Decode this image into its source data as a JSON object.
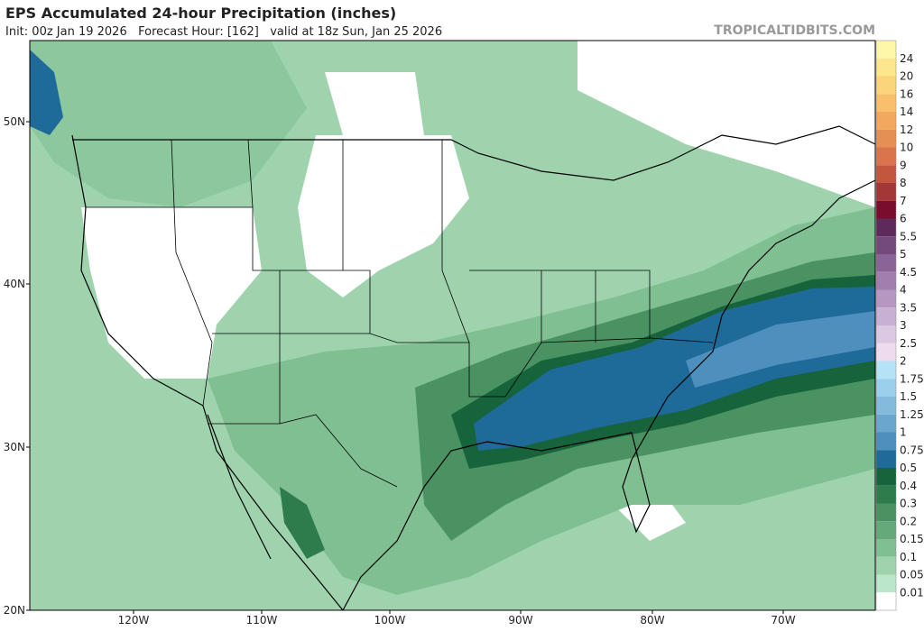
{
  "header": {
    "title": "EPS Accumulated 24-hour Precipitation (inches)",
    "subtitle": "Init: 00z Jan 19 2026   Forecast Hour: [162]   valid at 18z Sun, Jan 25 2026",
    "watermark": "TROPICALTIDBITS.COM"
  },
  "map": {
    "lat_labels": [
      "50N",
      "40N",
      "30N",
      "20N"
    ],
    "lon_labels": [
      "120W",
      "110W",
      "100W",
      "90W",
      "80W",
      "70W"
    ]
  },
  "colorbar": {
    "levels": [
      24,
      20,
      16,
      14,
      12,
      10,
      9,
      8,
      7,
      6,
      5.5,
      5,
      4.5,
      4,
      3.5,
      3,
      2.5,
      2,
      1.75,
      1.5,
      1.25,
      1,
      0.75,
      0.5,
      0.4,
      0.3,
      0.2,
      0.15,
      0.1,
      0.05,
      0.01
    ],
    "colors": [
      "#fef6a8",
      "#fde68c",
      "#fcd47a",
      "#f9bf6a",
      "#f2a85e",
      "#e68f55",
      "#d9744c",
      "#c3563f",
      "#a33636",
      "#7a0c2e",
      "#5e2a5c",
      "#744a7c",
      "#8a6497",
      "#a07eae",
      "#b597c2",
      "#c8b0d4",
      "#dcc8e2",
      "#eedcee",
      "#b4e2f6",
      "#9ccfe9",
      "#84bbdc",
      "#6aa6cd",
      "#4f8fbd",
      "#1e6a99",
      "#17633c",
      "#2e7b4c",
      "#4a9262",
      "#65a97a",
      "#80bf92",
      "#9fd3ae",
      "#bce6cc",
      "#ffffff"
    ]
  }
}
